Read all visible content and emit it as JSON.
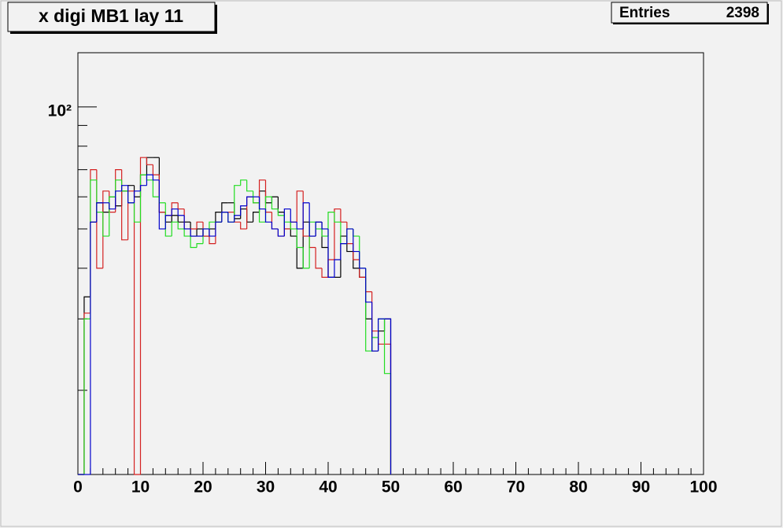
{
  "chart_data": {
    "type": "histogram",
    "title": "x digi MB1 lay 11",
    "stats": {
      "label": "Entries",
      "value": 2398
    },
    "bins": [
      0,
      1,
      2,
      3,
      4,
      5,
      6,
      7,
      8,
      9,
      10,
      11,
      12,
      13,
      14,
      15,
      16,
      17,
      18,
      19,
      20,
      21,
      22,
      23,
      24,
      25,
      26,
      27,
      28,
      29,
      30,
      31,
      32,
      33,
      34,
      35,
      36,
      37,
      38,
      39,
      40,
      41,
      42,
      43,
      44,
      45,
      46,
      47,
      48,
      49,
      50
    ],
    "series": [
      {
        "color": "#000000",
        "values": [
          0,
          34,
          52,
          58,
          55,
          60,
          57,
          62,
          64,
          60,
          68,
          75,
          75,
          55,
          52,
          54,
          52,
          52,
          48,
          50,
          48,
          50,
          55,
          58,
          58,
          53,
          56,
          52,
          55,
          62,
          58,
          60,
          55,
          50,
          48,
          40,
          52,
          48,
          52,
          45,
          38,
          38,
          48,
          44,
          40,
          38,
          30,
          25,
          28,
          30
        ]
      },
      {
        "color": "#d42020",
        "values": [
          0,
          31,
          70,
          40,
          62,
          55,
          70,
          47,
          62,
          0,
          75,
          72,
          68,
          55,
          54,
          58,
          56,
          50,
          50,
          52,
          48,
          46,
          52,
          55,
          55,
          52,
          50,
          60,
          58,
          66,
          55,
          50,
          48,
          50,
          52,
          62,
          48,
          45,
          40,
          38,
          42,
          56,
          52,
          46,
          42,
          38,
          35,
          28,
          26,
          26
        ]
      },
      {
        "color": "#22dd22",
        "values": [
          0,
          30,
          66,
          55,
          48,
          60,
          66,
          62,
          58,
          52,
          68,
          66,
          60,
          58,
          48,
          52,
          50,
          48,
          45,
          46,
          50,
          52,
          52,
          55,
          52,
          64,
          66,
          62,
          58,
          52,
          60,
          56,
          54,
          52,
          50,
          45,
          40,
          52,
          50,
          48,
          55,
          52,
          46,
          50,
          48,
          40,
          25,
          27,
          30,
          22
        ]
      },
      {
        "color": "#0000cc",
        "values": [
          0,
          0,
          52,
          58,
          58,
          56,
          62,
          64,
          58,
          62,
          64,
          68,
          66,
          50,
          54,
          56,
          54,
          50,
          48,
          48,
          50,
          48,
          52,
          55,
          52,
          54,
          57,
          60,
          60,
          56,
          52,
          50,
          48,
          56,
          52,
          50,
          58,
          48,
          52,
          50,
          38,
          42,
          46,
          50,
          44,
          40,
          33,
          25,
          30,
          30
        ]
      }
    ],
    "xlim": [
      0,
      100
    ],
    "xticks": [
      0,
      10,
      20,
      30,
      40,
      50,
      60,
      70,
      80,
      90,
      100
    ],
    "xminor_ticks": [
      2,
      4,
      6,
      8,
      12,
      14,
      16,
      18,
      22,
      24,
      26,
      28,
      32,
      34,
      36,
      38,
      42,
      44,
      46,
      48,
      52,
      54,
      56,
      58,
      62,
      64,
      66,
      68,
      72,
      74,
      76,
      78,
      82,
      84,
      86,
      88,
      92,
      94,
      96,
      98
    ],
    "ylim": [
      12.4,
      136
    ],
    "log_y": true,
    "yticks": [
      {
        "value": 100,
        "label": "10²"
      }
    ],
    "yminor_ticks": [
      20,
      30,
      40,
      50,
      60,
      70,
      80,
      90
    ]
  }
}
